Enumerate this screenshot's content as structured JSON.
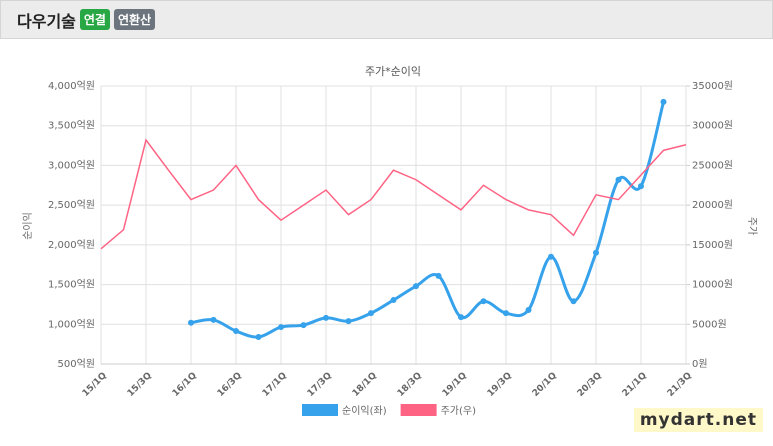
{
  "header": {
    "title": "다우기술",
    "badges": [
      "연결",
      "연환산"
    ]
  },
  "watermark": "mydart.net",
  "chart_data": {
    "type": "line",
    "title": "주가*순이익",
    "categories": [
      "15/1Q",
      null,
      "15/3Q",
      null,
      "16/1Q",
      null,
      "16/3Q",
      null,
      "17/1Q",
      null,
      "17/3Q",
      null,
      "18/1Q",
      null,
      "18/3Q",
      null,
      "19/1Q",
      null,
      "19/3Q",
      null,
      "20/1Q",
      null,
      "20/3Q",
      null,
      "21/1Q",
      null,
      "21/3Q"
    ],
    "series": [
      {
        "name": "순이익(좌)",
        "color": "#36a2eb",
        "axis": "y",
        "smooth": true,
        "markers": true,
        "values": [
          null,
          null,
          null,
          null,
          1020,
          1055,
          915,
          840,
          965,
          990,
          1080,
          1040,
          1140,
          1305,
          1480,
          1610,
          1090,
          1290,
          1140,
          1180,
          1850,
          1290,
          1900,
          2820,
          2740,
          3800,
          null
        ]
      },
      {
        "name": "주가(우)",
        "color": "#ff6384",
        "axis": "y2",
        "smooth": false,
        "markers": false,
        "values": [
          14500,
          16900,
          28200,
          24400,
          20700,
          21900,
          25000,
          20700,
          18100,
          20000,
          21900,
          18800,
          20700,
          24400,
          23200,
          21300,
          19400,
          22500,
          20700,
          19400,
          18800,
          16200,
          21300,
          20700,
          23800,
          26900,
          27600
        ]
      }
    ],
    "ylabel": "순이익",
    "y2label": "주가",
    "ylim": [
      500,
      4000
    ],
    "yticks": [
      {
        "value": 500,
        "label": "500억원"
      },
      {
        "value": 1000,
        "label": "1,000억원"
      },
      {
        "value": 1500,
        "label": "1,500억원"
      },
      {
        "value": 2000,
        "label": "2,000억원"
      },
      {
        "value": 2500,
        "label": "2,500억원"
      },
      {
        "value": 3000,
        "label": "3,000억원"
      },
      {
        "value": 3500,
        "label": "3,500억원"
      },
      {
        "value": 4000,
        "label": "4,000억원"
      }
    ],
    "y2lim": [
      0,
      35000
    ],
    "y2ticks": [
      {
        "value": 0,
        "label": "0원"
      },
      {
        "value": 5000,
        "label": "5000원"
      },
      {
        "value": 10000,
        "label": "10000원"
      },
      {
        "value": 15000,
        "label": "15000원"
      },
      {
        "value": 20000,
        "label": "20000원"
      },
      {
        "value": 25000,
        "label": "25000원"
      },
      {
        "value": 30000,
        "label": "30000원"
      },
      {
        "value": 35000,
        "label": "35000원"
      }
    ],
    "grid": true,
    "legend": "bottom"
  }
}
